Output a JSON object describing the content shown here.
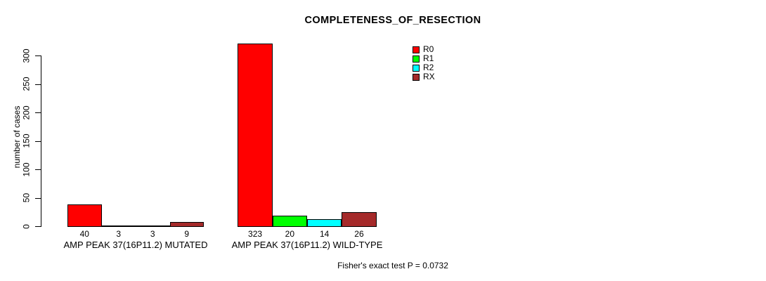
{
  "title": "COMPLETENESS_OF_RESECTION",
  "footer": "Fisher's exact test P = 0.0732",
  "chart_data": {
    "type": "bar",
    "title": "COMPLETENESS_OF_RESECTION",
    "xlabel": "",
    "ylabel": "number of cases",
    "ylim": [
      0,
      300
    ],
    "yticks": [
      0,
      50,
      100,
      150,
      200,
      250,
      300
    ],
    "grid": false,
    "legend_position": "top-right",
    "categories": [
      "AMP PEAK 37(16P11.2) MUTATED",
      "AMP PEAK 37(16P11.2) WILD-TYPE"
    ],
    "series": [
      {
        "name": "R0",
        "color": "#ff0000",
        "values": [
          40,
          323
        ]
      },
      {
        "name": "R1",
        "color": "#00ff00",
        "values": [
          3,
          20
        ]
      },
      {
        "name": "R2",
        "color": "#00ffff",
        "values": [
          3,
          14
        ]
      },
      {
        "name": "RX",
        "color": "#a52a2a",
        "values": [
          9,
          26
        ]
      }
    ],
    "bar_value_labels": [
      [
        40,
        3,
        3,
        9
      ],
      [
        323,
        20,
        14,
        26
      ]
    ],
    "annotation": "Fisher's exact test P = 0.0732"
  }
}
